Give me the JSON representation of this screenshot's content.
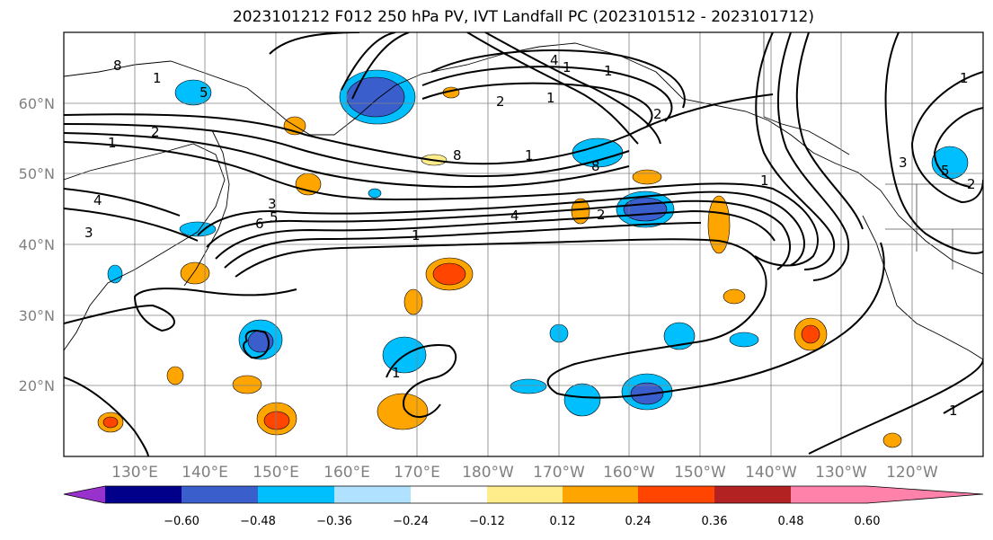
{
  "title": "2023101212 F012 250 hPa PV, IVT Landfall PC (2023101512 - 2023101712)",
  "lat_labels": [
    "60°N",
    "50°N",
    "40°N",
    "30°N",
    "20°N"
  ],
  "lon_labels": [
    "130°E",
    "140°E",
    "150°E",
    "160°E",
    "170°E",
    "180°W",
    "170°W",
    "160°W",
    "150°W",
    "140°W",
    "130°W",
    "120°W"
  ],
  "colorbar": {
    "ticks": [
      "−0.60",
      "−0.48",
      "−0.36",
      "−0.24",
      "−0.12",
      "0.12",
      "0.24",
      "0.36",
      "0.48",
      "0.60"
    ],
    "colors": [
      "#9932cc",
      "#00008b",
      "#3a5fcd",
      "#00bfff",
      "#b0e2ff",
      "#ffffff",
      "#ffec8b",
      "#ffa500",
      "#ff4500",
      "#b22222",
      "#ff82ab"
    ]
  },
  "contour_labels": [
    "8",
    "1",
    "5",
    "1",
    "2",
    "2",
    "1",
    "8",
    "1",
    "3",
    "4",
    "6",
    "5",
    "3",
    "4",
    "2",
    "1",
    "1",
    "4",
    "2",
    "5",
    "1",
    "3",
    "1",
    "1",
    "2",
    "1",
    "8",
    "1"
  ]
}
